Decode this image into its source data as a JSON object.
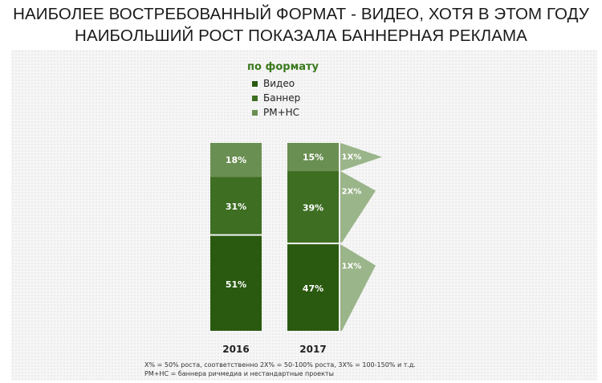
{
  "title_lines": [
    "НАИБОЛЕЕ ВОСТРЕБОВАННЫЙ ФОРМАТ - ВИДЕО, ХОТЯ В ЭТОМ ГОДУ",
    "НАИБОЛЬШИЙ РОСТ ПОКАЗАЛА БАННЕРНАЯ РЕКЛАМА"
  ],
  "legend": {
    "title": "по формату",
    "items": [
      {
        "label": "Видео",
        "color": "#2a5a10"
      },
      {
        "label": "Баннер",
        "color": "#3d6e22"
      },
      {
        "label": "PM+HC",
        "color": "#6a8f52"
      }
    ]
  },
  "chart_data": {
    "type": "bar",
    "stacked": true,
    "categories": [
      "2016",
      "2017"
    ],
    "series": [
      {
        "name": "Видео",
        "values": [
          51,
          47
        ],
        "labels": [
          "51%",
          "47%"
        ],
        "color": "#2a5a10"
      },
      {
        "name": "Баннер",
        "values": [
          31,
          39
        ],
        "labels": [
          "31%",
          "39%"
        ],
        "color": "#3d6e22"
      },
      {
        "name": "PM+HC",
        "values": [
          18,
          15
        ],
        "labels": [
          "18%",
          "15%"
        ],
        "color": "#6a8f52"
      }
    ],
    "growth_markers": [
      {
        "series": "PM+HC",
        "label": "1X%"
      },
      {
        "series": "Баннер",
        "label": "2X%"
      },
      {
        "series": "Видео",
        "label": "1X%"
      }
    ],
    "marker_color": "#9bb58a"
  },
  "footnote_lines": [
    "X% = 50% роста, соответственно  2X% = 50-100% роста, 3X% = 100-150% и т.д.",
    "РМ+НС = баннера ричмедиа и нестандартные проекты"
  ]
}
